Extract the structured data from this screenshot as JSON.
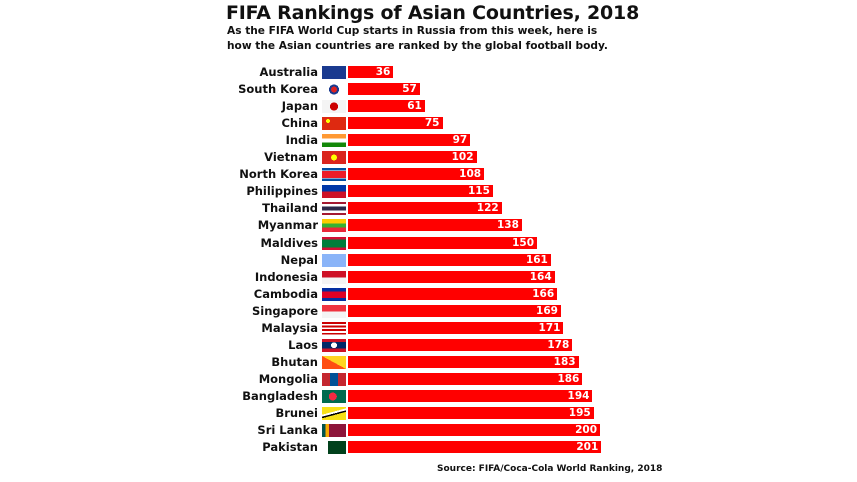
{
  "chart_data": {
    "type": "bar",
    "orientation": "horizontal",
    "title": "FIFA Rankings of Asian Countries, 2018",
    "subtitle": [
      "As the FIFA World Cup starts in Russia from this week, here is",
      "how the Asian countries are ranked by the global football body."
    ],
    "source": "Source: FIFA/Coca-Cola World Ranking, 2018",
    "categories": [
      "Australia",
      "South Korea",
      "Japan",
      "China",
      "India",
      "Vietnam",
      "North Korea",
      "Philippines",
      "Thailand",
      "Myanmar",
      "Maldives",
      "Nepal",
      "Indonesia",
      "Cambodia",
      "Singapore",
      "Malaysia",
      "Laos",
      "Bhutan",
      "Mongolia",
      "Bangladesh",
      "Brunei",
      "Sri Lanka",
      "Pakistan"
    ],
    "values": [
      36,
      57,
      61,
      75,
      97,
      102,
      108,
      115,
      122,
      138,
      150,
      161,
      164,
      166,
      169,
      171,
      178,
      183,
      186,
      194,
      195,
      200,
      201
    ],
    "bar_color": "#ff0000",
    "data_labels": true,
    "grid": false,
    "flag_icons": [
      "australia-flag",
      "south-korea-flag",
      "japan-flag",
      "china-flag",
      "india-flag",
      "vietnam-flag",
      "north-korea-flag",
      "philippines-flag",
      "thailand-flag",
      "myanmar-flag",
      "maldives-flag",
      "nepal-flag",
      "indonesia-flag",
      "cambodia-flag",
      "singapore-flag",
      "malaysia-flag",
      "laos-flag",
      "bhutan-flag",
      "mongolia-flag",
      "bangladesh-flag",
      "brunei-flag",
      "sri-lanka-flag",
      "pakistan-flag"
    ]
  }
}
